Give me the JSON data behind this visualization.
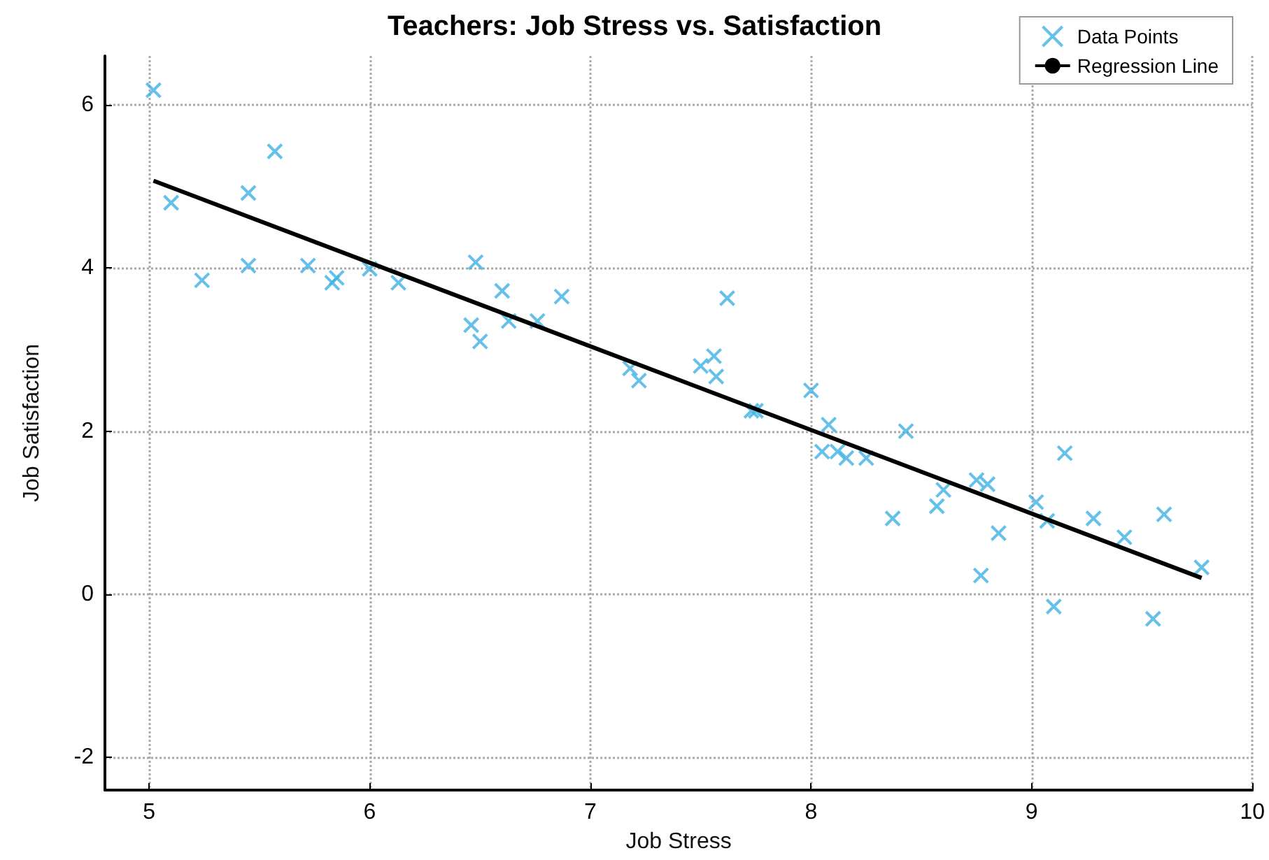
{
  "chart_data": {
    "type": "scatter",
    "title": "Teachers: Job Stress vs. Satisfaction",
    "xlabel": "Job Stress",
    "ylabel": "Job Satisfaction",
    "xlim": [
      4.8,
      10
    ],
    "ylim": [
      -2.4,
      6.6
    ],
    "xticks": [
      5,
      6,
      7,
      8,
      9,
      10
    ],
    "yticks": [
      -2,
      0,
      2,
      4,
      6
    ],
    "grid": true,
    "legend": "top right",
    "marker": "cross",
    "series": [
      {
        "name": "Data Points",
        "color": "#3fb1e3",
        "x": [
          5.02,
          5.1,
          5.24,
          5.45,
          5.45,
          5.57,
          5.72,
          5.83,
          5.85,
          6.0,
          6.13,
          6.46,
          6.48,
          6.5,
          6.6,
          6.63,
          6.76,
          6.87,
          7.18,
          7.22,
          7.5,
          7.56,
          7.57,
          7.62,
          7.73,
          7.75,
          8.0,
          8.08,
          8.05,
          8.12,
          8.16,
          8.25,
          8.37,
          8.43,
          8.57,
          8.6,
          8.75,
          8.8,
          8.77,
          8.85,
          9.02,
          9.07,
          9.1,
          9.15,
          9.28,
          9.42,
          9.55,
          9.6,
          9.77
        ],
        "values": [
          6.18,
          4.8,
          3.85,
          4.92,
          4.03,
          5.43,
          4.03,
          3.82,
          3.88,
          3.99,
          3.82,
          3.3,
          4.07,
          3.1,
          3.72,
          3.35,
          3.35,
          3.65,
          2.77,
          2.62,
          2.8,
          2.92,
          2.67,
          3.63,
          2.25,
          2.25,
          2.5,
          2.08,
          1.75,
          1.75,
          1.67,
          1.67,
          0.93,
          2.0,
          1.08,
          1.28,
          1.4,
          1.35,
          0.23,
          0.75,
          1.13,
          0.9,
          -0.15,
          1.73,
          0.93,
          0.7,
          -0.3,
          0.98,
          0.33
        ]
      },
      {
        "name": "Regression Line",
        "type": "line",
        "color": "#000000",
        "marker": "none",
        "line_style": "solid",
        "x": [
          5.02,
          9.77
        ],
        "values": [
          5.07,
          0.2
        ]
      }
    ]
  }
}
